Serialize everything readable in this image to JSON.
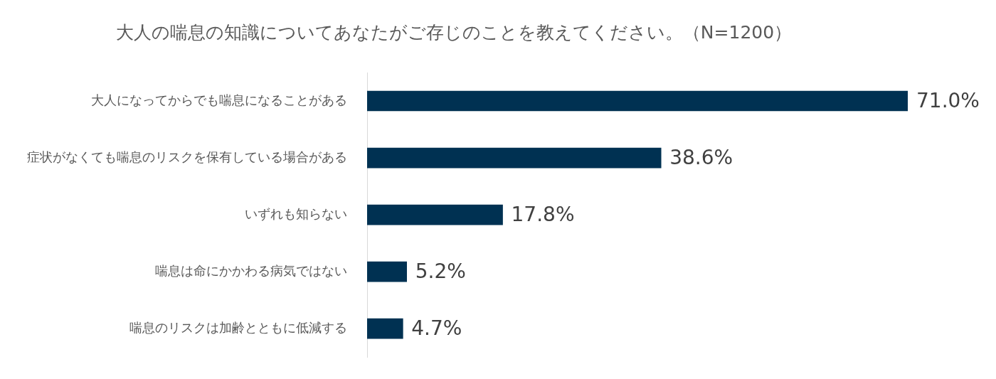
{
  "chart_data": {
    "type": "bar",
    "orientation": "horizontal",
    "title": "大人の喘息の知識についてあなたがご存じのことを教えてください。（N=1200）",
    "categories": [
      "大人になってからでも喘息になることがある",
      "症状がなくても喘息のリスクを保有している場合がある",
      "いずれも知らない",
      "喘息は命にかかわる病気ではない",
      "喘息のリスクは加齢とともに低減する"
    ],
    "values": [
      71.0,
      38.6,
      17.8,
      5.2,
      4.7
    ],
    "value_labels": [
      "71.0%",
      "38.6%",
      "17.8%",
      "5.2%",
      "4.7%"
    ],
    "color": "#003152",
    "legend": false
  }
}
